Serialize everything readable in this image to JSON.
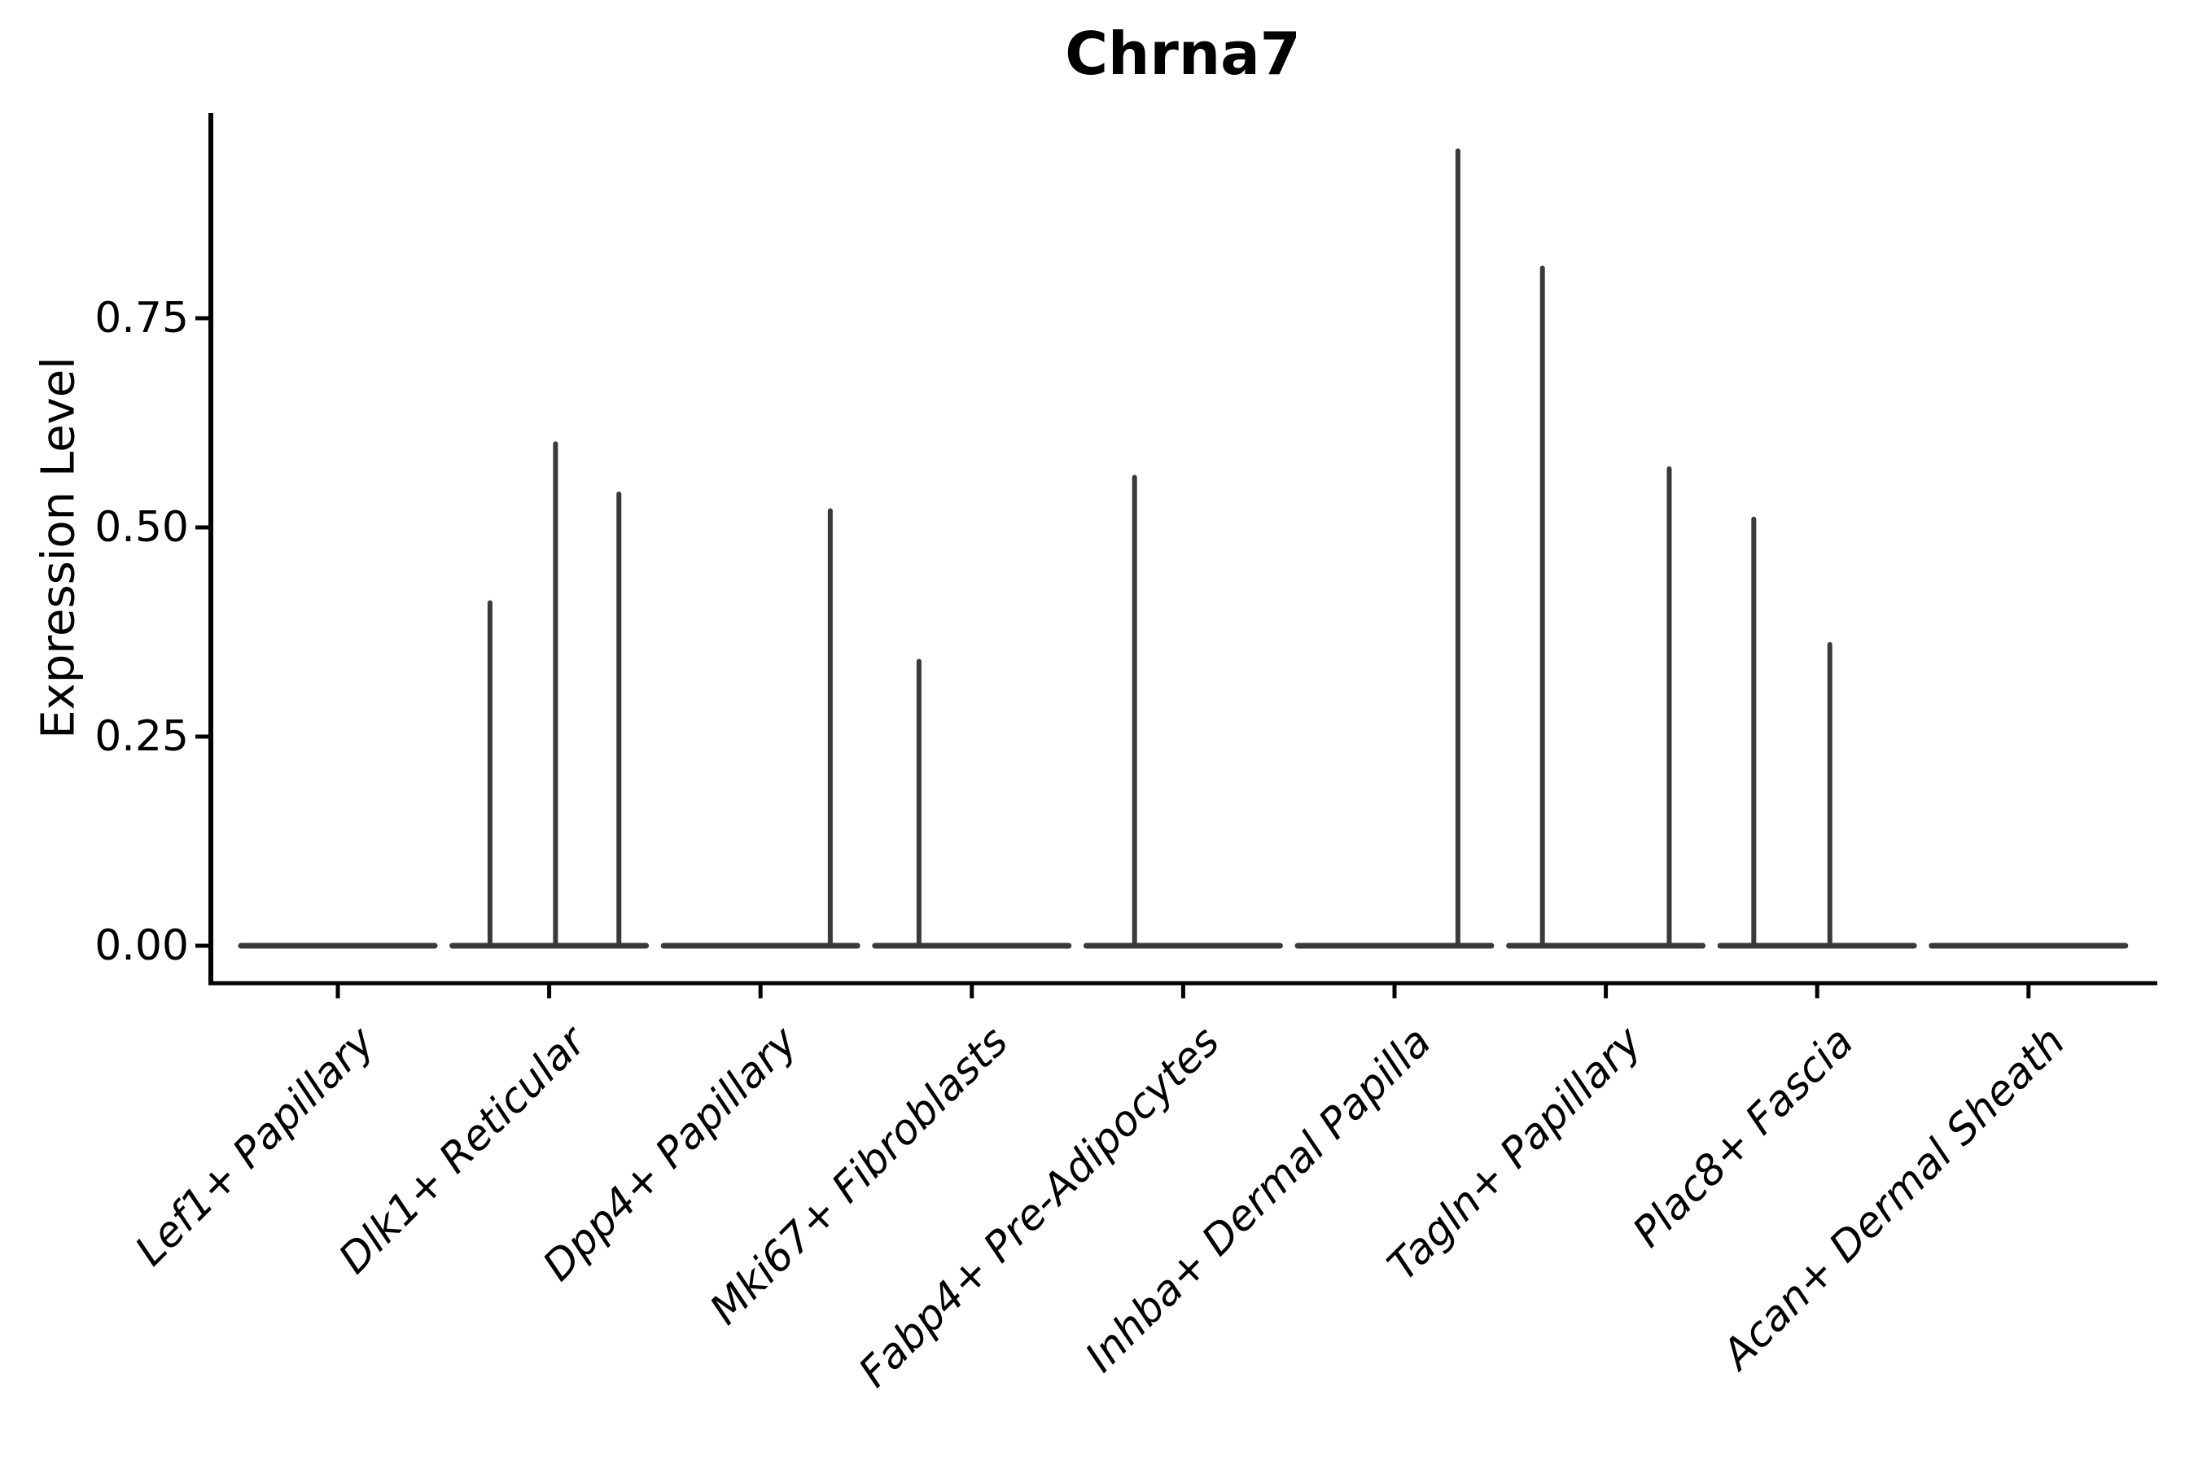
{
  "chart_data": {
    "type": "violin",
    "title": "Chrna7",
    "ylabel": "Expression Level",
    "xlabel": "",
    "grid": false,
    "legend": false,
    "violin_color": "#3a3a3a",
    "axis_color": "#000000",
    "ylim": [
      -0.045,
      1.0
    ],
    "yticks": [
      {
        "value": 0.0,
        "label": "0.00"
      },
      {
        "value": 0.25,
        "label": "0.25"
      },
      {
        "value": 0.5,
        "label": "0.50"
      },
      {
        "value": 0.75,
        "label": "0.75"
      }
    ],
    "categories": [
      "Lef1+ Papillary",
      "Dlk1+ Reticular",
      "Dpp4+ Papillary",
      "Mki67+ Fibroblasts",
      "Fabp4+ Pre-Adipocytes",
      "Inhba+ Dermal Papilla",
      "Tagln+ Papillary",
      "Plac8+ Fascia",
      "Acan+ Dermal Sheath"
    ],
    "series": [
      {
        "category": "Lef1+ Papillary",
        "baseline": 0,
        "spikes": []
      },
      {
        "category": "Dlk1+ Reticular",
        "baseline": 0,
        "spikes": [
          {
            "value": 0.41,
            "offset": -0.28
          },
          {
            "value": 0.6,
            "offset": 0.03
          },
          {
            "value": 0.54,
            "offset": 0.33
          }
        ]
      },
      {
        "category": "Dpp4+ Papillary",
        "baseline": 0,
        "spikes": [
          {
            "value": 0.52,
            "offset": 0.33
          }
        ]
      },
      {
        "category": "Mki67+ Fibroblasts",
        "baseline": 0,
        "spikes": [
          {
            "value": 0.34,
            "offset": -0.25
          }
        ]
      },
      {
        "category": "Fabp4+ Pre-Adipocytes",
        "baseline": 0,
        "spikes": [
          {
            "value": 0.56,
            "offset": -0.23
          }
        ]
      },
      {
        "category": "Inhba+ Dermal Papilla",
        "baseline": 0,
        "spikes": [
          {
            "value": 0.95,
            "offset": 0.3
          }
        ]
      },
      {
        "category": "Tagln+ Papillary",
        "baseline": 0,
        "spikes": [
          {
            "value": 0.81,
            "offset": -0.3
          },
          {
            "value": 0.57,
            "offset": 0.3
          }
        ]
      },
      {
        "category": "Plac8+ Fascia",
        "baseline": 0,
        "spikes": [
          {
            "value": 0.51,
            "offset": -0.3
          },
          {
            "value": 0.36,
            "offset": 0.06
          }
        ]
      },
      {
        "category": "Acan+ Dermal Sheath",
        "baseline": 0,
        "spikes": []
      }
    ]
  }
}
